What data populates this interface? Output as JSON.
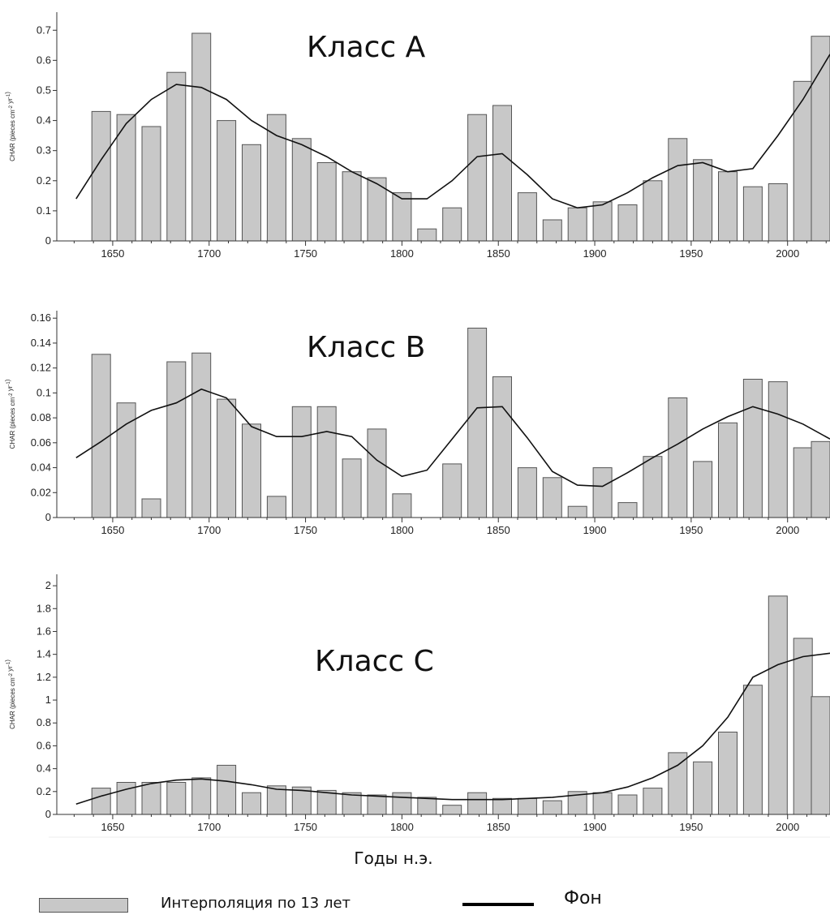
{
  "xlabel": "Годы н.э.",
  "legend": {
    "bars": "Интерполяция по 13 лет",
    "line": "Фон"
  },
  "colors": {
    "bar_fill": "#c8c8c8",
    "bar_stroke": "#555555",
    "line": "#111111"
  },
  "chart_data": [
    {
      "type": "bar",
      "title": "Класс А",
      "ylabel": "CHAR (pieces cm-2 yr-1)",
      "x_ticks": [
        1650,
        1700,
        1750,
        1800,
        1850,
        1900,
        1950,
        2000
      ],
      "y_ticks": [
        0,
        0.1,
        0.2,
        0.3,
        0.4,
        0.5,
        0.6,
        0.7
      ],
      "xlim": [
        1621,
        2022
      ],
      "ylim": [
        0,
        0.76
      ],
      "bars": {
        "x": [
          1644,
          1657,
          1670,
          1683,
          1696,
          1709,
          1722,
          1735,
          1748,
          1761,
          1774,
          1787,
          1800,
          1813,
          1826,
          1839,
          1852,
          1865,
          1878,
          1891,
          1904,
          1917,
          1930,
          1943,
          1956,
          1969,
          1982,
          1995,
          2008,
          2021
        ],
        "values": [
          0.43,
          0.42,
          0.38,
          0.56,
          0.69,
          0.4,
          0.32,
          0.42,
          0.34,
          0.26,
          0.23,
          0.21,
          0.16,
          0.04,
          0.11,
          0.42,
          0.45,
          0.16,
          0.07,
          0.11,
          0.13,
          0.12,
          0.2,
          0.34,
          0.27,
          0.23,
          0.18,
          0.19,
          0.53,
          0.68
        ]
      },
      "background": {
        "x": [
          1631,
          1644,
          1657,
          1670,
          1683,
          1696,
          1709,
          1722,
          1735,
          1748,
          1761,
          1774,
          1787,
          1800,
          1813,
          1826,
          1839,
          1852,
          1865,
          1878,
          1891,
          1904,
          1917,
          1930,
          1943,
          1956,
          1969,
          1982,
          1995,
          2008,
          2022
        ],
        "values": [
          0.14,
          0.27,
          0.39,
          0.47,
          0.52,
          0.51,
          0.47,
          0.4,
          0.35,
          0.32,
          0.28,
          0.23,
          0.19,
          0.14,
          0.14,
          0.2,
          0.28,
          0.29,
          0.22,
          0.14,
          0.11,
          0.12,
          0.16,
          0.21,
          0.25,
          0.26,
          0.23,
          0.24,
          0.35,
          0.47,
          0.62
        ]
      }
    },
    {
      "type": "bar",
      "title": "Класс В",
      "ylabel": "CHAR (pieces cm-2 yr-1)",
      "x_ticks": [
        1650,
        1700,
        1750,
        1800,
        1850,
        1900,
        1950,
        2000
      ],
      "y_ticks": [
        0,
        0.02,
        0.04,
        0.06,
        0.08,
        0.1,
        0.12,
        0.14,
        0.16
      ],
      "y_tick_labels": [
        "0",
        "0.02",
        "0.04",
        "0.06",
        "0.08",
        "0.1",
        "0.12",
        "0.14",
        "0.16"
      ],
      "xlim": [
        1621,
        2022
      ],
      "ylim": [
        0,
        0.166
      ],
      "bars": {
        "x": [
          1644,
          1657,
          1670,
          1683,
          1696,
          1709,
          1722,
          1735,
          1748,
          1761,
          1774,
          1787,
          1800,
          1826,
          1839,
          1852,
          1865,
          1878,
          1891,
          1904,
          1917,
          1930,
          1943,
          1956,
          1969,
          1982,
          1995,
          2008,
          2021
        ],
        "values": [
          0.131,
          0.092,
          0.015,
          0.125,
          0.132,
          0.095,
          0.075,
          0.017,
          0.089,
          0.089,
          0.047,
          0.071,
          0.019,
          0.043,
          0.152,
          0.113,
          0.04,
          0.032,
          0.009,
          0.04,
          0.012,
          0.049,
          0.096,
          0.045,
          0.076,
          0.111,
          0.109,
          0.056,
          0.061
        ]
      },
      "background": {
        "x": [
          1631,
          1644,
          1657,
          1670,
          1683,
          1696,
          1709,
          1722,
          1735,
          1748,
          1761,
          1774,
          1787,
          1800,
          1813,
          1826,
          1839,
          1852,
          1865,
          1878,
          1891,
          1904,
          1917,
          1930,
          1943,
          1956,
          1969,
          1982,
          1995,
          2008,
          2022
        ],
        "values": [
          0.048,
          0.061,
          0.075,
          0.086,
          0.092,
          0.103,
          0.096,
          0.073,
          0.065,
          0.065,
          0.069,
          0.065,
          0.046,
          0.033,
          0.038,
          0.063,
          0.088,
          0.089,
          0.064,
          0.037,
          0.026,
          0.025,
          0.036,
          0.048,
          0.059,
          0.071,
          0.081,
          0.089,
          0.083,
          0.075,
          0.063
        ]
      }
    },
    {
      "type": "bar",
      "title": "Класс С",
      "ylabel": "CHAR (pieces cm-2 yr-1)",
      "x_ticks": [
        1650,
        1700,
        1750,
        1800,
        1850,
        1900,
        1950,
        2000
      ],
      "y_ticks": [
        0,
        0.2,
        0.4,
        0.6,
        0.8,
        1,
        1.2,
        1.4,
        1.6,
        1.8,
        2
      ],
      "y_tick_labels": [
        "0",
        "0.2",
        "0.4",
        "0.6",
        "0.8",
        "1",
        "1.2",
        "1.4",
        "1.6",
        "1.8",
        "2"
      ],
      "xlim": [
        1621,
        2022
      ],
      "ylim": [
        0,
        2.1
      ],
      "bars": {
        "x": [
          1644,
          1657,
          1670,
          1683,
          1696,
          1709,
          1722,
          1735,
          1748,
          1761,
          1774,
          1787,
          1800,
          1813,
          1826,
          1839,
          1852,
          1865,
          1878,
          1891,
          1904,
          1917,
          1930,
          1943,
          1956,
          1969,
          1982,
          1995,
          2008,
          2021
        ],
        "values": [
          0.23,
          0.28,
          0.28,
          0.28,
          0.32,
          0.43,
          0.19,
          0.25,
          0.24,
          0.21,
          0.19,
          0.17,
          0.19,
          0.15,
          0.08,
          0.19,
          0.14,
          0.14,
          0.12,
          0.2,
          0.19,
          0.17,
          0.23,
          0.54,
          0.46,
          0.72,
          1.13,
          1.91,
          1.54,
          1.03
        ]
      },
      "background": {
        "x": [
          1631,
          1644,
          1657,
          1670,
          1683,
          1696,
          1709,
          1722,
          1735,
          1748,
          1761,
          1774,
          1787,
          1800,
          1813,
          1826,
          1839,
          1852,
          1865,
          1878,
          1891,
          1904,
          1917,
          1930,
          1943,
          1956,
          1969,
          1982,
          1995,
          2008,
          2022
        ],
        "values": [
          0.09,
          0.16,
          0.22,
          0.27,
          0.3,
          0.31,
          0.29,
          0.26,
          0.22,
          0.21,
          0.19,
          0.17,
          0.16,
          0.15,
          0.14,
          0.13,
          0.13,
          0.13,
          0.14,
          0.15,
          0.17,
          0.19,
          0.24,
          0.32,
          0.43,
          0.6,
          0.85,
          1.2,
          1.31,
          1.38,
          1.41
        ]
      }
    }
  ]
}
